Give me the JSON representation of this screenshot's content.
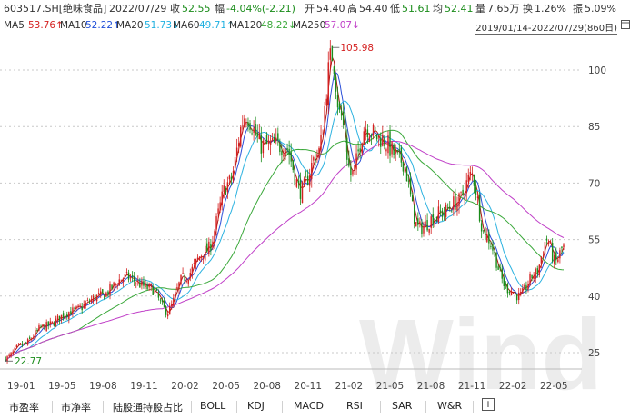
{
  "header": {
    "code_name": "603517.SH[绝味食品]",
    "date": "2022/07/29",
    "close_label": "收",
    "close": "52.55",
    "change_label": "幅",
    "change": "-4.04%(-2.21)",
    "open_label": "开",
    "open": "54.40",
    "high_label": "高",
    "high": "54.40",
    "low_label": "低",
    "low": "51.61",
    "avg_label": "均",
    "avg": "52.41",
    "volume_label": "量",
    "volume": "7.65万",
    "turnover_label": "换",
    "turnover": "1.26%",
    "amplitude_label": "振",
    "amplitude": "5.09%"
  },
  "ma_bar": {
    "items": [
      {
        "label": "MA5",
        "value": "53.76↑",
        "color": "#d42020"
      },
      {
        "label": "MA10",
        "value": "52.22↑",
        "color": "#1f4fd8"
      },
      {
        "label": "MA20",
        "value": "51.73↓",
        "color": "#1fb0e0"
      },
      {
        "label": "MA60",
        "value": "49.71↑",
        "color": "#1fb0e0"
      },
      {
        "label": "MA120",
        "value": "48.22↓",
        "color": "#3aa83a"
      },
      {
        "label": "MA250",
        "value": "57.07↓",
        "color": "#c040c8"
      }
    ],
    "range": "2019/01/14-2022/07/29(860日)"
  },
  "colors": {
    "up": "#d42020",
    "down": "#1a8c1a",
    "ma5": "#b01818",
    "ma10": "#2b4fd8",
    "ma20": "#2cb2e0",
    "ma120": "#3aa83a",
    "ma250": "#c040c8",
    "grid": "#c8c8c8",
    "watermark": "#ececec"
  },
  "watermark": "Wind",
  "chart_data": {
    "type": "candlestick",
    "yticks": [
      100,
      85,
      70,
      55,
      40,
      25
    ],
    "ylim": [
      18.5,
      112
    ],
    "xticks": [
      "19-01",
      "19-05",
      "19-08",
      "19-11",
      "20-02",
      "20-05",
      "20-08",
      "20-11",
      "21-02",
      "21-05",
      "21-08",
      "21-11",
      "22-02",
      "22-05"
    ],
    "annotations": [
      {
        "text": "105.98",
        "date": "2021-02",
        "value": 105.98
      },
      {
        "text": "22.77",
        "date": "2019-01",
        "value": 22.77
      }
    ],
    "anchors": [
      {
        "x": 0.0,
        "p": 23.5
      },
      {
        "x": 0.03,
        "p": 27
      },
      {
        "x": 0.07,
        "p": 32
      },
      {
        "x": 0.12,
        "p": 36
      },
      {
        "x": 0.17,
        "p": 40
      },
      {
        "x": 0.215,
        "p": 45
      },
      {
        "x": 0.26,
        "p": 42
      },
      {
        "x": 0.29,
        "p": 36
      },
      {
        "x": 0.32,
        "p": 45
      },
      {
        "x": 0.36,
        "p": 52
      },
      {
        "x": 0.4,
        "p": 70
      },
      {
        "x": 0.43,
        "p": 88
      },
      {
        "x": 0.46,
        "p": 80
      },
      {
        "x": 0.5,
        "p": 80
      },
      {
        "x": 0.53,
        "p": 68
      },
      {
        "x": 0.56,
        "p": 78
      },
      {
        "x": 0.585,
        "p": 104
      },
      {
        "x": 0.6,
        "p": 88
      },
      {
        "x": 0.62,
        "p": 72
      },
      {
        "x": 0.645,
        "p": 85
      },
      {
        "x": 0.67,
        "p": 82
      },
      {
        "x": 0.71,
        "p": 76
      },
      {
        "x": 0.74,
        "p": 58
      },
      {
        "x": 0.78,
        "p": 62
      },
      {
        "x": 0.81,
        "p": 65
      },
      {
        "x": 0.835,
        "p": 72
      },
      {
        "x": 0.86,
        "p": 56
      },
      {
        "x": 0.9,
        "p": 42
      },
      {
        "x": 0.92,
        "p": 40
      },
      {
        "x": 0.95,
        "p": 46
      },
      {
        "x": 0.97,
        "p": 55
      },
      {
        "x": 0.985,
        "p": 49
      },
      {
        "x": 1.0,
        "p": 53
      }
    ]
  },
  "tabs": [
    "市盈率",
    "市净率",
    "陆股通持股占比",
    "BOLL",
    "KDJ",
    "MACD",
    "RSI",
    "SAR",
    "W&R"
  ],
  "add_tab": "+"
}
